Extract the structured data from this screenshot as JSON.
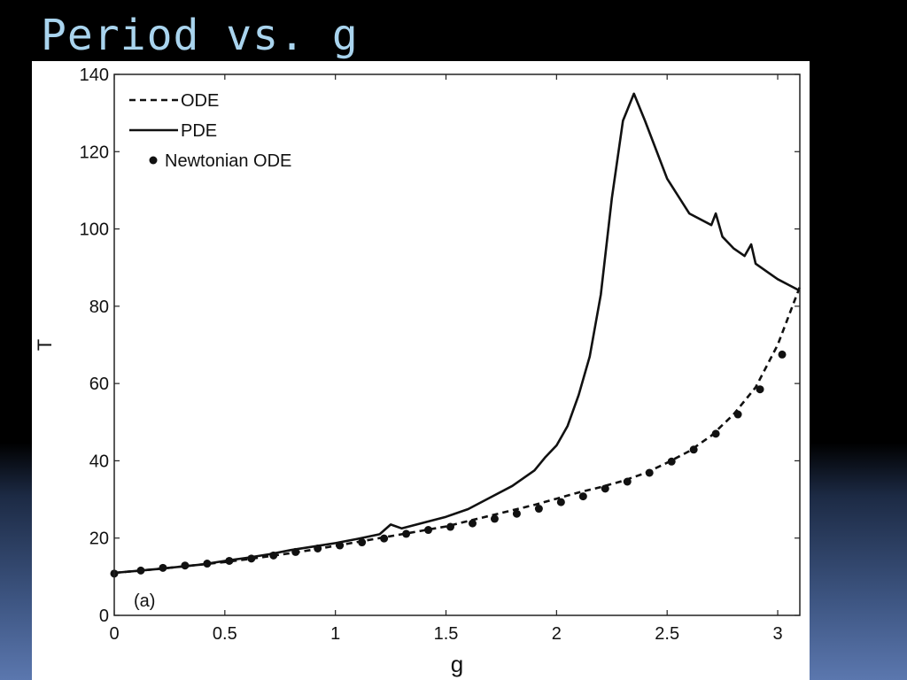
{
  "slide": {
    "title": "Period vs. g"
  },
  "chart_data": {
    "type": "line",
    "title": "",
    "xlabel": "g",
    "ylabel": "T",
    "xlim": [
      0,
      3.1
    ],
    "ylim": [
      0,
      140
    ],
    "x_ticks": [
      0,
      0.5,
      1,
      1.5,
      2,
      2.5,
      3
    ],
    "x_tick_labels": [
      "0",
      "0.5",
      "1",
      "1.5",
      "2",
      "2.5",
      "3"
    ],
    "y_ticks": [
      0,
      20,
      40,
      60,
      80,
      100,
      120,
      140
    ],
    "y_tick_labels": [
      "0",
      "20",
      "40",
      "60",
      "80",
      "100",
      "120",
      "140"
    ],
    "grid": false,
    "legend_position": "top-left",
    "annotation": "(a)",
    "series": [
      {
        "name": "ODE",
        "style": "dashed",
        "x": [
          0,
          0.1,
          0.2,
          0.3,
          0.4,
          0.5,
          0.6,
          0.7,
          0.8,
          0.9,
          1.0,
          1.1,
          1.2,
          1.3,
          1.4,
          1.5,
          1.6,
          1.7,
          1.8,
          1.9,
          2.0,
          2.1,
          2.2,
          2.3,
          2.4,
          2.5,
          2.6,
          2.7,
          2.8,
          2.9,
          3.0,
          3.1
        ],
        "y": [
          11,
          11.5,
          12,
          12.6,
          13.2,
          13.8,
          14.5,
          15.3,
          16.1,
          17,
          18,
          19,
          20,
          21,
          22,
          23,
          24.4,
          25.8,
          27.2,
          28.6,
          30.2,
          31.8,
          33.2,
          34.8,
          36.8,
          39.5,
          42.5,
          46.5,
          52,
          59,
          70,
          85
        ]
      },
      {
        "name": "PDE",
        "style": "solid",
        "x": [
          0,
          0.1,
          0.2,
          0.3,
          0.4,
          0.5,
          0.6,
          0.7,
          0.8,
          0.9,
          1.0,
          1.1,
          1.2,
          1.25,
          1.3,
          1.4,
          1.5,
          1.6,
          1.7,
          1.8,
          1.9,
          1.95,
          2.0,
          2.05,
          2.1,
          2.15,
          2.2,
          2.25,
          2.3,
          2.35,
          2.4,
          2.5,
          2.6,
          2.7,
          2.72,
          2.75,
          2.8,
          2.85,
          2.88,
          2.9,
          2.95,
          3.0,
          3.1
        ],
        "y": [
          11,
          11.5,
          12,
          12.6,
          13.2,
          14.1,
          14.9,
          15.8,
          16.9,
          17.8,
          18.7,
          19.8,
          21,
          23.5,
          22.5,
          24,
          25.5,
          27.5,
          30.5,
          33.5,
          37.5,
          41,
          44,
          49,
          57,
          67,
          83,
          108,
          128,
          135,
          128,
          113,
          104,
          101,
          104,
          98,
          95,
          93,
          96,
          91,
          89,
          87,
          84
        ]
      },
      {
        "name": "Newtonian ODE",
        "style": "markers",
        "x": [
          0,
          0.12,
          0.22,
          0.32,
          0.42,
          0.52,
          0.62,
          0.72,
          0.82,
          0.92,
          1.02,
          1.12,
          1.22,
          1.32,
          1.42,
          1.52,
          1.62,
          1.72,
          1.82,
          1.92,
          2.02,
          2.12,
          2.22,
          2.32,
          2.42,
          2.52,
          2.62,
          2.72,
          2.82,
          2.92,
          3.02
        ],
        "y": [
          10.8,
          11.6,
          12.3,
          12.9,
          13.4,
          14.1,
          14.7,
          15.5,
          16.4,
          17.3,
          18.1,
          18.9,
          19.9,
          21.1,
          22.1,
          22.9,
          23.8,
          25,
          26.3,
          27.6,
          29.3,
          30.8,
          32.8,
          34.6,
          36.9,
          39.8,
          42.9,
          47,
          52,
          58.5,
          67.5
        ]
      }
    ]
  }
}
